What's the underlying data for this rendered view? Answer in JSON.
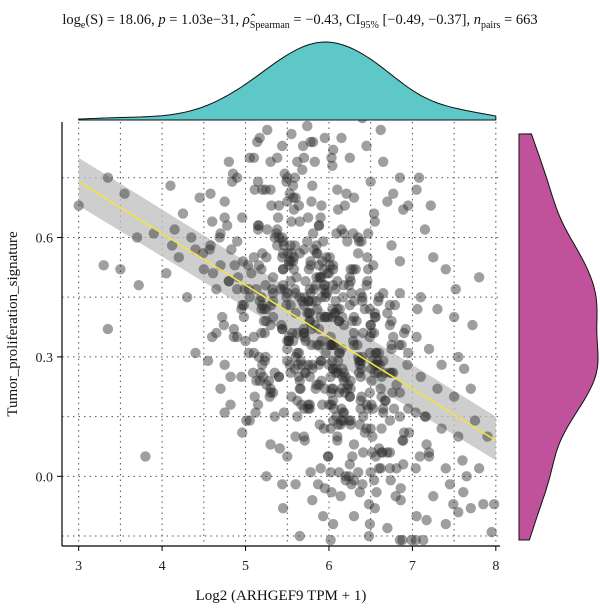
{
  "stats": {
    "log_prefix": "log",
    "log_base": "e",
    "s_value": "(S) = 18.06, ",
    "p_label": "p",
    "p_value": " = 1.03e−31, ",
    "rho_label": "ρ̂",
    "rho_sub": "Spearman",
    "rho_value": " = −0.43, CI",
    "ci_sub": "95%",
    "ci_value": " [−0.49, −0.37], ",
    "n_label": "n",
    "n_sub": "pairs",
    "n_value": " = 663"
  },
  "colors": {
    "points": "#2b2b2b",
    "fit_line": "#f0e442",
    "confidence_band": "#bdbdbd",
    "x_density": "#5ec7c7",
    "y_density": "#c0519b",
    "grid": "#555555"
  },
  "chart_data": {
    "type": "scatter",
    "title": "",
    "xlabel": "Log2 (ARHGEF9 TPM + 1)",
    "ylabel": "Tumor_proliferation_signature",
    "xlim": [
      2.8,
      8.05
    ],
    "ylim": [
      -0.175,
      0.89
    ],
    "x_ticks": [
      3,
      4,
      5,
      6,
      7,
      8
    ],
    "y_ticks": [
      0.0,
      0.3,
      0.6
    ],
    "y_tick_labels": [
      "0.0",
      "0.3",
      "0.6"
    ],
    "grid": true,
    "n_points": 663,
    "fit": {
      "x": [
        3.0,
        8.0
      ],
      "y": [
        0.74,
        0.09
      ],
      "ci_lower": [
        0.68,
        0.04
      ],
      "ci_upper": [
        0.8,
        0.15
      ]
    },
    "points": [
      [
        3.0,
        0.68
      ],
      [
        3.35,
        0.75
      ],
      [
        3.55,
        0.71
      ],
      [
        3.7,
        0.6
      ],
      [
        3.9,
        0.61
      ],
      [
        3.3,
        0.53
      ],
      [
        3.5,
        0.52
      ],
      [
        3.72,
        0.48
      ],
      [
        3.35,
        0.37
      ],
      [
        3.8,
        0.05
      ],
      [
        4.1,
        0.73
      ],
      [
        4.25,
        0.66
      ],
      [
        4.45,
        0.7
      ],
      [
        4.6,
        0.64
      ],
      [
        4.75,
        0.69
      ],
      [
        4.9,
        0.59
      ],
      [
        4.2,
        0.55
      ],
      [
        4.5,
        0.52
      ],
      [
        4.8,
        0.49
      ],
      [
        4.3,
        0.45
      ],
      [
        4.65,
        0.36
      ],
      [
        4.4,
        0.31
      ],
      [
        4.7,
        0.22
      ],
      [
        4.55,
        0.29
      ],
      [
        4.85,
        0.76
      ],
      [
        4.35,
        0.6
      ],
      [
        4.05,
        0.51
      ],
      [
        4.95,
        0.42
      ],
      [
        4.6,
        0.35
      ],
      [
        4.75,
        0.28
      ],
      [
        4.9,
        0.35
      ],
      [
        4.95,
        0.25
      ],
      [
        4.82,
        0.18
      ],
      [
        4.98,
        0.4
      ],
      [
        4.15,
        0.62
      ],
      [
        4.58,
        0.71
      ],
      [
        4.7,
        0.53
      ],
      [
        4.4,
        0.57
      ],
      [
        4.9,
        0.47
      ],
      [
        4.12,
        0.58
      ],
      [
        5.1,
        0.8
      ],
      [
        5.3,
        0.79
      ],
      [
        5.5,
        0.75
      ],
      [
        5.7,
        0.8
      ],
      [
        5.2,
        0.72
      ],
      [
        5.4,
        0.68
      ],
      [
        5.6,
        0.7
      ],
      [
        5.8,
        0.73
      ],
      [
        5.15,
        0.62
      ],
      [
        5.35,
        0.6
      ],
      [
        5.55,
        0.64
      ],
      [
        5.75,
        0.65
      ],
      [
        5.25,
        0.55
      ],
      [
        5.45,
        0.52
      ],
      [
        5.65,
        0.56
      ],
      [
        5.85,
        0.58
      ],
      [
        5.05,
        0.45
      ],
      [
        5.25,
        0.42
      ],
      [
        5.45,
        0.48
      ],
      [
        5.65,
        0.45
      ],
      [
        5.85,
        0.5
      ],
      [
        5.1,
        0.35
      ],
      [
        5.3,
        0.38
      ],
      [
        5.5,
        0.32
      ],
      [
        5.7,
        0.37
      ],
      [
        5.9,
        0.4
      ],
      [
        5.2,
        0.28
      ],
      [
        5.4,
        0.25
      ],
      [
        5.6,
        0.3
      ],
      [
        5.8,
        0.27
      ],
      [
        5.15,
        0.18
      ],
      [
        5.35,
        0.15
      ],
      [
        5.55,
        0.2
      ],
      [
        5.75,
        0.17
      ],
      [
        5.95,
        0.22
      ],
      [
        5.3,
        0.08
      ],
      [
        5.5,
        0.05
      ],
      [
        5.7,
        0.1
      ],
      [
        5.9,
        0.02
      ],
      [
        5.6,
        -0.02
      ],
      [
        5.8,
        -0.06
      ],
      [
        5.45,
        -0.08
      ],
      [
        5.65,
        -0.15
      ],
      [
        5.25,
        0.0
      ],
      [
        5.95,
        0.85
      ],
      [
        5.05,
        0.8
      ],
      [
        5.55,
        0.86
      ],
      [
        5.78,
        0.84
      ],
      [
        5.38,
        0.8
      ],
      [
        5.68,
        0.77
      ],
      [
        6.05,
        0.82
      ],
      [
        6.25,
        0.8
      ],
      [
        6.45,
        0.83
      ],
      [
        6.65,
        0.79
      ],
      [
        6.1,
        0.72
      ],
      [
        6.3,
        0.7
      ],
      [
        6.5,
        0.74
      ],
      [
        6.7,
        0.69
      ],
      [
        6.15,
        0.62
      ],
      [
        6.35,
        0.6
      ],
      [
        6.55,
        0.64
      ],
      [
        6.75,
        0.58
      ],
      [
        6.05,
        0.52
      ],
      [
        6.25,
        0.5
      ],
      [
        6.45,
        0.48
      ],
      [
        6.65,
        0.46
      ],
      [
        6.85,
        0.54
      ],
      [
        6.1,
        0.42
      ],
      [
        6.3,
        0.4
      ],
      [
        6.5,
        0.38
      ],
      [
        6.7,
        0.41
      ],
      [
        6.9,
        0.36
      ],
      [
        6.15,
        0.32
      ],
      [
        6.35,
        0.3
      ],
      [
        6.55,
        0.28
      ],
      [
        6.75,
        0.26
      ],
      [
        6.95,
        0.31
      ],
      [
        6.05,
        0.22
      ],
      [
        6.25,
        0.2
      ],
      [
        6.45,
        0.18
      ],
      [
        6.65,
        0.16
      ],
      [
        6.85,
        0.21
      ],
      [
        6.1,
        0.1
      ],
      [
        6.3,
        0.08
      ],
      [
        6.5,
        0.12
      ],
      [
        6.7,
        0.06
      ],
      [
        6.9,
        0.11
      ],
      [
        6.2,
        0.0
      ],
      [
        6.4,
        -0.02
      ],
      [
        6.6,
        0.02
      ],
      [
        6.8,
        -0.05
      ],
      [
        6.3,
        -0.1
      ],
      [
        6.55,
        -0.08
      ],
      [
        6.05,
        -0.12
      ],
      [
        6.02,
        -0.16
      ],
      [
        6.15,
        0.85
      ],
      [
        6.62,
        0.87
      ],
      [
        6.85,
        0.75
      ],
      [
        6.95,
        0.68
      ],
      [
        6.4,
        0.9
      ],
      [
        7.05,
        0.72
      ],
      [
        7.15,
        0.62
      ],
      [
        7.25,
        0.55
      ],
      [
        7.4,
        0.52
      ],
      [
        7.1,
        0.45
      ],
      [
        7.3,
        0.42
      ],
      [
        7.5,
        0.4
      ],
      [
        7.05,
        0.35
      ],
      [
        7.2,
        0.32
      ],
      [
        7.35,
        0.28
      ],
      [
        7.55,
        0.3
      ],
      [
        7.1,
        0.25
      ],
      [
        7.3,
        0.22
      ],
      [
        7.5,
        0.2
      ],
      [
        7.7,
        0.22
      ],
      [
        7.15,
        0.15
      ],
      [
        7.35,
        0.12
      ],
      [
        7.55,
        0.1
      ],
      [
        7.75,
        0.14
      ],
      [
        7.2,
        0.05
      ],
      [
        7.4,
        0.02
      ],
      [
        7.6,
        0.04
      ],
      [
        7.8,
        0.02
      ],
      [
        7.25,
        -0.05
      ],
      [
        7.45,
        -0.02
      ],
      [
        7.65,
        0.0
      ],
      [
        7.7,
        -0.08
      ],
      [
        7.85,
        -0.07
      ],
      [
        7.98,
        -0.07
      ],
      [
        7.55,
        -0.09
      ],
      [
        7.4,
        -0.12
      ],
      [
        7.95,
        -0.14
      ],
      [
        7.05,
        -0.1
      ],
      [
        7.08,
        0.75
      ],
      [
        7.22,
        0.68
      ],
      [
        7.52,
        0.47
      ],
      [
        7.72,
        0.38
      ],
      [
        7.8,
        0.5
      ],
      [
        7.9,
        0.1
      ],
      [
        7.62,
        0.27
      ]
    ]
  }
}
